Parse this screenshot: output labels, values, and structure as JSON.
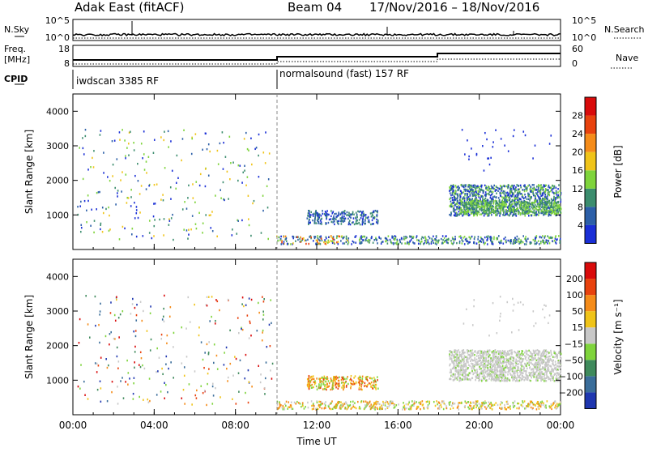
{
  "header": {
    "station": "Adak East (fitACF)",
    "beam_label": "Beam 04",
    "date_range": "17/Nov/2016 – 18/Nov/2016"
  },
  "top_panels": {
    "nsky_label": "N.Sky",
    "nsky_ticks": [
      "10^5",
      "10^0"
    ],
    "nsearch_label": "N.Search",
    "nsearch_ticks": [
      "10^5",
      "10^0"
    ],
    "freq_label_1": "Freq.",
    "freq_label_2": "[MHz]",
    "freq_ticks": [
      "18",
      "8"
    ],
    "nave_label": "Nave",
    "nave_ticks": [
      "60",
      "0"
    ],
    "cpid_label": "CPID",
    "cpid_segments": [
      "iwdscan 3385 RF",
      "normalsound (fast) 157 RF"
    ]
  },
  "chart_data": [
    {
      "type": "heatmap",
      "title": "",
      "ylabel": "Slant Range [km]",
      "yticks": [
        "1000",
        "2000",
        "3000",
        "4000"
      ],
      "ylim": [
        0,
        4500
      ],
      "colorbar_label": "Power [dB]",
      "colorbar_ticks": [
        "4",
        "8",
        "12",
        "16",
        "20",
        "24",
        "28"
      ],
      "colors": [
        "#1a2fd6",
        "#2c5fa8",
        "#3c8d6e",
        "#7fd43c",
        "#f0c419",
        "#f58c1a",
        "#e8420e",
        "#d90b0b"
      ],
      "xticks": [
        "00:00",
        "04:00",
        "08:00",
        "12:00",
        "16:00",
        "20:00",
        "00:00"
      ]
    },
    {
      "type": "heatmap",
      "title": "",
      "ylabel": "Slant Range [km]",
      "yticks": [
        "1000",
        "2000",
        "3000",
        "4000"
      ],
      "ylim": [
        0,
        4500
      ],
      "colorbar_label": "Velocity [m s⁻¹]",
      "colorbar_ticks": [
        "200",
        "100",
        "50",
        "15",
        "−15",
        "−50",
        "−100",
        "−200"
      ],
      "colors": [
        "#1f37b0",
        "#3a6d9a",
        "#3f8a5c",
        "#7fd43c",
        "#c8c8c8",
        "#f0c419",
        "#f58c1a",
        "#e8420e",
        "#d90b0b"
      ],
      "xticks": [
        "00:00",
        "04:00",
        "08:00",
        "12:00",
        "16:00",
        "20:00",
        "00:00"
      ],
      "xlabel": "Time UT"
    }
  ]
}
